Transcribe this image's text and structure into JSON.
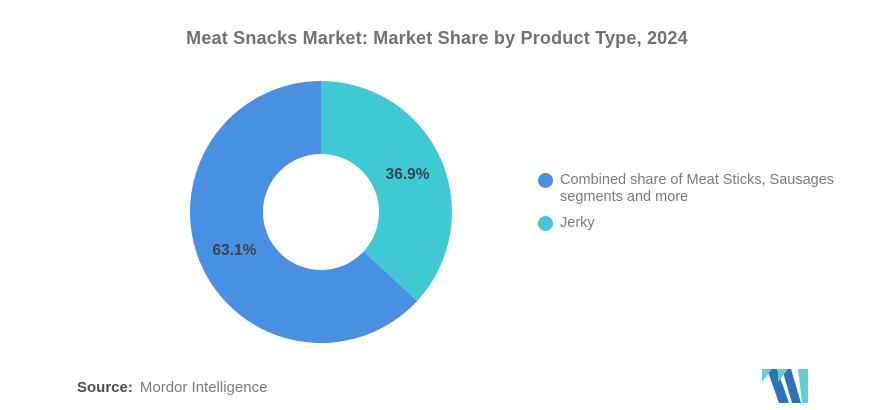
{
  "chart_data": {
    "type": "pie",
    "subtype": "donut",
    "title": "Meat Snacks Market: Market Share by Product Type, 2024",
    "unit": "%",
    "series": [
      {
        "id": "combined",
        "name": "Combined share of Meat Sticks, Sausages segments and more",
        "value": 63.1,
        "label": "63.1%",
        "color": "#4A90E2"
      },
      {
        "id": "jerky",
        "name": "Jerky",
        "value": 36.9,
        "label": "36.9%",
        "color": "#3FC9D3"
      }
    ],
    "draw_order": [
      1,
      0
    ],
    "start_angle_deg": 0,
    "direction": "clockwise",
    "donut_hole_ratio": 0.44,
    "legend_position": "right",
    "label_color": "#3B4551"
  },
  "source": {
    "label": "Source:",
    "value": "Mordor Intelligence"
  },
  "logo": {
    "alt": "Mordor Intelligence logo",
    "colors": {
      "teal": "#5FCFD4",
      "blue": "#2E72B5"
    }
  }
}
